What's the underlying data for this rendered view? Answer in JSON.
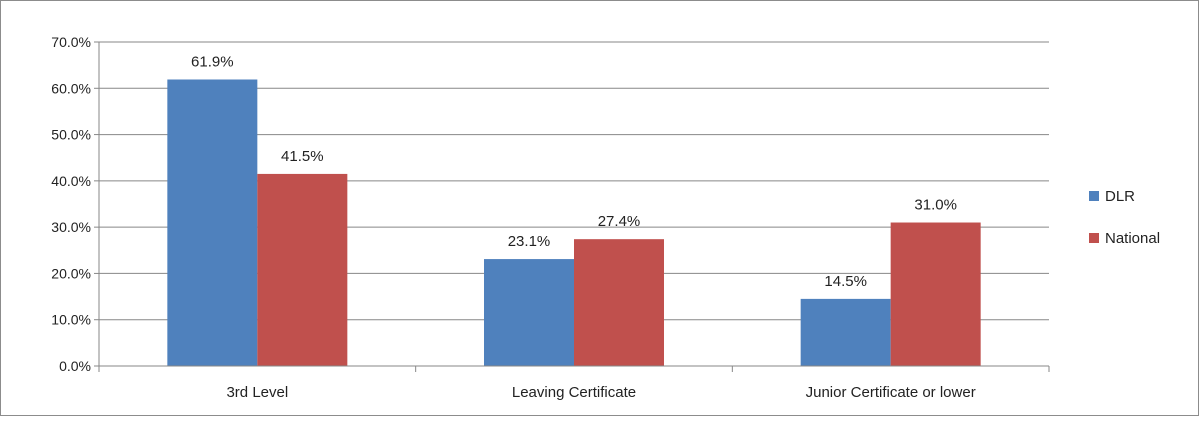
{
  "chart_data": {
    "type": "bar",
    "title": "",
    "xlabel": "",
    "ylabel": "",
    "categories": [
      "3rd Level",
      "Leaving Certificate",
      "Junior Certificate or lower"
    ],
    "series": [
      {
        "name": "DLR",
        "values": [
          61.9,
          23.1,
          14.5
        ],
        "color": "#4F81BD"
      },
      {
        "name": "National",
        "values": [
          41.5,
          27.4,
          31.0
        ],
        "color": "#C0504D"
      }
    ],
    "data_labels": [
      [
        "61.9%",
        "23.1%",
        "14.5%"
      ],
      [
        "41.5%",
        "27.4%",
        "31.0%"
      ]
    ],
    "ylim": [
      0,
      70
    ],
    "y_ticks": [
      "0.0%",
      "10.0%",
      "20.0%",
      "30.0%",
      "40.0%",
      "50.0%",
      "60.0%",
      "70.0%"
    ],
    "grid": true,
    "legend_position": "right"
  }
}
